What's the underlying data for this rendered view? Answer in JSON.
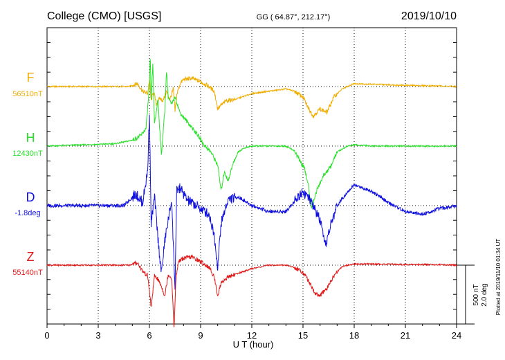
{
  "header": {
    "station": "College (CMO)  [USGS]",
    "coords": "GG ( 64.87°, 212.17°)",
    "date": "2019/10/10"
  },
  "footer": {
    "plotted": "Plotted at 2019/11/10 01:34 UT"
  },
  "chart_data": {
    "type": "line",
    "xlabel": "U T (hour)",
    "xlim": [
      0,
      24
    ],
    "x_ticks": [
      "0",
      "3",
      "6",
      "9",
      "12",
      "15",
      "18",
      "21",
      "24"
    ],
    "scale_label_1": "500 nT",
    "scale_label_2": "2.0 deg",
    "series": [
      {
        "name": "F",
        "baseline_label": "56510nT",
        "color": "#f0ad00",
        "x": [
          0,
          4.8,
          5.3,
          5.6,
          5.9,
          6.0,
          6.1,
          6.25,
          6.4,
          6.6,
          6.8,
          7.0,
          7.2,
          7.4,
          7.5,
          7.6,
          7.8,
          8.0,
          8.5,
          9.0,
          9.5,
          9.8,
          10.0,
          10.2,
          10.5,
          11.0,
          12.0,
          13.0,
          14.0,
          14.5,
          15.0,
          15.3,
          15.6,
          16.0,
          16.4,
          16.8,
          17.3,
          18.0,
          19.0,
          21.0,
          23.0,
          24.0
        ],
        "y": [
          0,
          0,
          25,
          -40,
          -60,
          60,
          -120,
          -40,
          -150,
          -100,
          -120,
          -40,
          -110,
          -20,
          -210,
          -70,
          25,
          60,
          70,
          40,
          0,
          -40,
          -190,
          -160,
          -120,
          -110,
          -60,
          -40,
          -20,
          -40,
          -90,
          -180,
          -250,
          -190,
          -220,
          -90,
          -20,
          25,
          20,
          10,
          5,
          0
        ]
      },
      {
        "name": "H",
        "baseline_label": "12430nT",
        "color": "#28e028",
        "x": [
          0,
          4.0,
          5.0,
          5.5,
          5.8,
          6.0,
          6.05,
          6.1,
          6.2,
          6.3,
          6.5,
          6.7,
          6.9,
          7.0,
          7.1,
          7.3,
          7.5,
          7.8,
          8.2,
          8.8,
          9.2,
          9.6,
          10.0,
          10.2,
          10.4,
          10.6,
          10.9,
          11.2,
          11.5,
          12.0,
          13.0,
          14.0,
          14.5,
          14.8,
          15.1,
          15.3,
          15.5,
          15.8,
          16.2,
          16.6,
          17.0,
          17.6,
          18.0,
          19.0,
          21.0,
          24.0
        ],
        "y": [
          0,
          20,
          50,
          90,
          150,
          500,
          780,
          380,
          700,
          180,
          400,
          -80,
          300,
          640,
          420,
          350,
          420,
          280,
          210,
          100,
          10,
          -50,
          -160,
          -380,
          -210,
          -300,
          -150,
          -50,
          -20,
          0,
          0,
          0,
          -40,
          -120,
          -200,
          -320,
          -520,
          -380,
          -250,
          -180,
          -50,
          0,
          10,
          0,
          0,
          0
        ]
      },
      {
        "name": "D",
        "baseline_label": "-1.8deg",
        "color": "#1010e0",
        "x": [
          0,
          4.5,
          5.2,
          5.6,
          5.9,
          6.0,
          6.1,
          6.3,
          6.5,
          6.7,
          6.9,
          7.1,
          7.3,
          7.5,
          7.6,
          7.8,
          8.2,
          9.0,
          9.5,
          9.8,
          10.0,
          10.2,
          10.6,
          11.2,
          12.0,
          13.0,
          14.0,
          15.0,
          15.5,
          16.0,
          16.3,
          16.6,
          17.0,
          17.5,
          18.0,
          19.0,
          20.0,
          21.0,
          22.0,
          23.0,
          24.0
        ],
        "y": [
          0,
          0,
          0.4,
          0.1,
          1.2,
          3.2,
          -0.6,
          0.3,
          -1.1,
          -2.3,
          -1.2,
          -0.5,
          0.2,
          -2.8,
          0.5,
          0.6,
          0.2,
          -0.1,
          -0.3,
          -1.0,
          -2.1,
          -0.6,
          0.2,
          0.3,
          0,
          -0.2,
          -0.2,
          0.5,
          0.1,
          -0.5,
          -1.4,
          -0.7,
          0,
          0.4,
          0.7,
          0.5,
          0.1,
          -0.2,
          -0.3,
          -0.1,
          0
        ]
      },
      {
        "name": "Z",
        "baseline_label": "55140nT",
        "color": "#e01818",
        "x": [
          0,
          4.8,
          5.3,
          5.6,
          5.9,
          6.0,
          6.1,
          6.3,
          6.5,
          6.7,
          6.9,
          7.1,
          7.3,
          7.45,
          7.55,
          7.7,
          8.0,
          8.5,
          9.0,
          9.5,
          9.8,
          10.0,
          10.2,
          10.6,
          11.0,
          12.0,
          13.0,
          14.0,
          14.5,
          15.0,
          15.4,
          15.7,
          16.0,
          16.4,
          16.8,
          17.3,
          18.0,
          19.0,
          21.0,
          23.0,
          24.0
        ],
        "y": [
          0,
          0,
          20,
          -50,
          -90,
          -220,
          -360,
          -90,
          -120,
          -180,
          -260,
          -80,
          -110,
          -540,
          -120,
          30,
          60,
          70,
          30,
          -20,
          -100,
          -260,
          -150,
          -100,
          -80,
          -30,
          0,
          0,
          -20,
          -60,
          -150,
          -240,
          -260,
          -200,
          -90,
          -10,
          10,
          10,
          5,
          5,
          0
        ]
      }
    ]
  }
}
